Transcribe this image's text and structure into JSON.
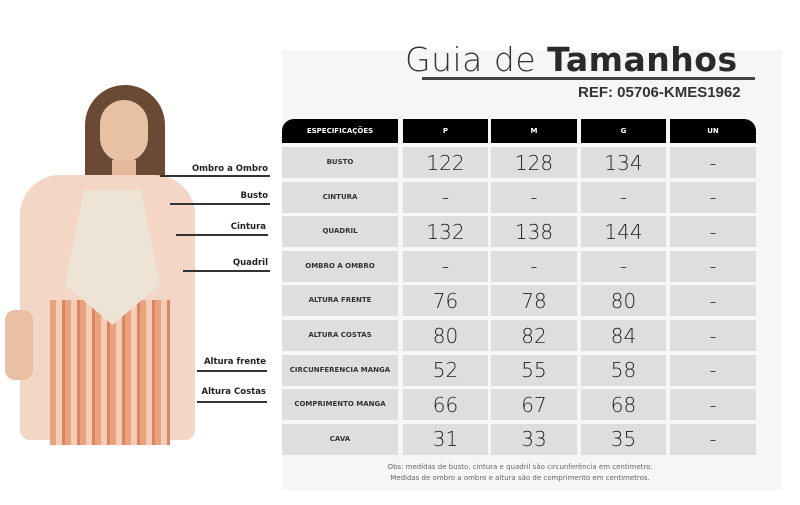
{
  "title": {
    "light": "Guia de ",
    "bold": "Tamanhos"
  },
  "ref": "REF: 05706-KMES1962",
  "table": {
    "headers": [
      "ESPECIFICAÇÕES",
      "P",
      "M",
      "G",
      "UN"
    ],
    "rows": [
      {
        "label": "BUSTO",
        "values": [
          "122",
          "128",
          "134",
          "-"
        ]
      },
      {
        "label": "CINTURA",
        "values": [
          "-",
          "-",
          "-",
          "-"
        ]
      },
      {
        "label": "QUADRIL",
        "values": [
          "132",
          "138",
          "144",
          "-"
        ]
      },
      {
        "label": "OMBRO A OMBRO",
        "values": [
          "-",
          "-",
          "-",
          "-"
        ]
      },
      {
        "label": "ALTURA FRENTE",
        "values": [
          "76",
          "78",
          "80",
          "-"
        ]
      },
      {
        "label": "ALTURA COSTAS",
        "values": [
          "80",
          "82",
          "84",
          "-"
        ]
      },
      {
        "label": "CIRCUNFERENCIA MANGA",
        "values": [
          "52",
          "55",
          "58",
          "-"
        ]
      },
      {
        "label": "COMPRIMENTO MANGA",
        "values": [
          "66",
          "67",
          "68",
          "-"
        ]
      },
      {
        "label": "CAVA",
        "values": [
          "31",
          "33",
          "35",
          "-"
        ]
      }
    ]
  },
  "measure_labels": [
    "Ombro a Ombro",
    "Busto",
    "Cintura",
    "Quadril",
    "Altura frente",
    "Altura Costas"
  ],
  "obs": [
    "Obs: medidas de busto, cintura e quadril são circunferência em centimetro.",
    "Medidas de ombro a ombro e altura são de comprimento em centimetros."
  ]
}
